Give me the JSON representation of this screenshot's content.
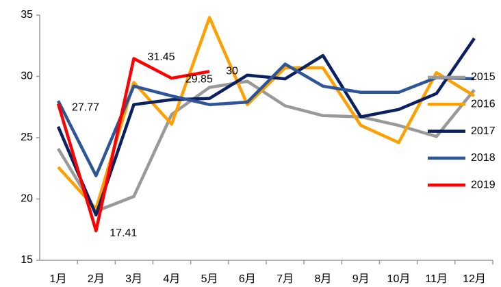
{
  "chart_data": {
    "type": "line",
    "categories": [
      "1月",
      "2月",
      "3月",
      "4月",
      "5月",
      "6月",
      "7月",
      "8月",
      "9月",
      "10月",
      "11月",
      "12月"
    ],
    "series": [
      {
        "name": "2015",
        "color": "#999999",
        "values": [
          24.1,
          19.0,
          20.2,
          26.9,
          29.1,
          29.6,
          27.6,
          26.8,
          26.7,
          26.0,
          25.1,
          28.9
        ]
      },
      {
        "name": "2016",
        "color": "#ffa000",
        "values": [
          22.6,
          19.2,
          29.5,
          26.1,
          34.8,
          27.7,
          30.7,
          30.7,
          26.0,
          24.6,
          30.3,
          28.4
        ]
      },
      {
        "name": "2017",
        "color": "#0a2060",
        "values": [
          25.9,
          18.7,
          27.7,
          28.1,
          28.2,
          30.1,
          29.8,
          31.7,
          26.7,
          27.3,
          28.6,
          33.1
        ]
      },
      {
        "name": "2018",
        "color": "#2e5597",
        "values": [
          28.0,
          21.9,
          29.2,
          28.4,
          27.7,
          27.9,
          31.0,
          29.2,
          28.7,
          28.7,
          29.9,
          29.8
        ]
      },
      {
        "name": "2019",
        "color": "#ff0000",
        "values": [
          27.77,
          17.41,
          31.45,
          29.85,
          30.4,
          null,
          null,
          null,
          null,
          null,
          null,
          null
        ],
        "value_labels": [
          "27.77",
          "17.41",
          "31.45",
          "29.85",
          "30",
          null,
          null,
          null,
          null,
          null,
          null,
          null
        ]
      }
    ],
    "ylim": [
      15,
      35
    ],
    "yticks": [
      15,
      20,
      25,
      30,
      35
    ],
    "grid": false,
    "legend": "right"
  }
}
